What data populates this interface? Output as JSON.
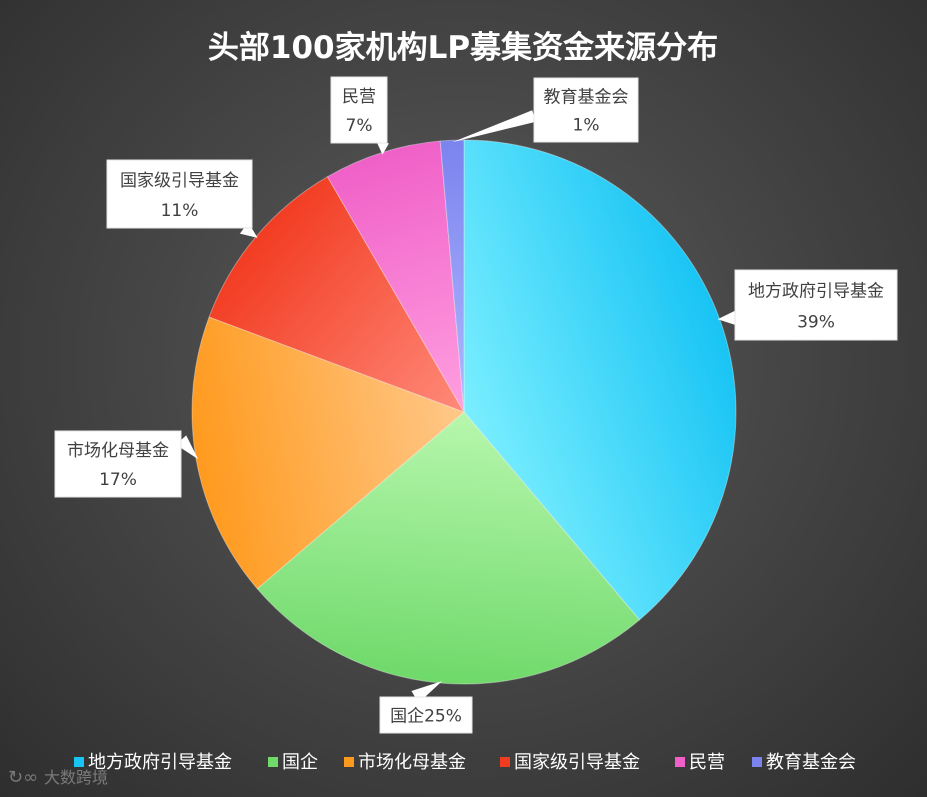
{
  "chart_data": {
    "type": "pie",
    "title": "头部100家机构LP募集资金来源分布",
    "slices": [
      {
        "name": "地方政府引导基金",
        "value": 39,
        "label": "39%",
        "color_light": "#7aeeff",
        "color_dark": "#18c4f4"
      },
      {
        "name": "国企",
        "value": 25,
        "label": "国企25%",
        "color_light": "#b7f7ad",
        "color_dark": "#6fd96a"
      },
      {
        "name": "市场化母基金",
        "value": 17,
        "label": "17%",
        "color_light": "#ffc889",
        "color_dark": "#ff9a1e"
      },
      {
        "name": "国家级引导基金",
        "value": 11,
        "label": "11%",
        "color_light": "#ff8a7a",
        "color_dark": "#f23c22"
      },
      {
        "name": "民营",
        "value": 7,
        "label": "7%",
        "color_light": "#ff9fe0",
        "color_dark": "#f060c8"
      },
      {
        "name": "教育基金会",
        "value": 1.4,
        "label": "1%",
        "color_light": "#b0b8ff",
        "color_dark": "#7b83ee"
      }
    ],
    "legend_position": "bottom"
  },
  "watermark": "大数跨境"
}
